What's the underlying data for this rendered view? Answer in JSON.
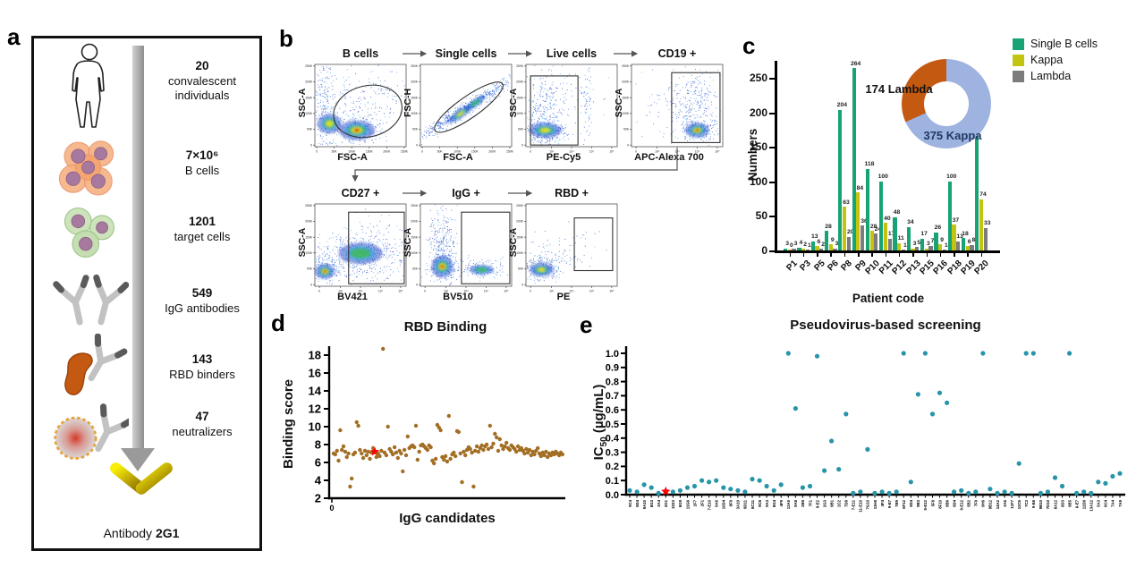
{
  "panel_letters": {
    "a": "a",
    "b": "b",
    "c": "c",
    "d": "d",
    "e": "e"
  },
  "panel_a": {
    "steps": [
      {
        "icon": "human-icon",
        "value": "20",
        "label": "convalescent individuals"
      },
      {
        "icon": "b-cells-icon",
        "value": "7×10⁶",
        "label": "B cells"
      },
      {
        "icon": "target-cells-icon",
        "value": "1201",
        "label": "target cells"
      },
      {
        "icon": "igg-antibodies-icon",
        "value": "549",
        "label": "IgG antibodies"
      },
      {
        "icon": "rbd-binder-icon",
        "value": "143",
        "label": "RBD binders"
      },
      {
        "icon": "neutralizer-icon",
        "value": "47",
        "label": "neutralizers"
      }
    ],
    "footer_prefix": "Antibody",
    "footer_name": "2G1"
  },
  "panel_b": {
    "plots": [
      {
        "title": "B cells",
        "xlabel": "FSC-A",
        "ylabel": "SSC-A",
        "xscale": "linear"
      },
      {
        "title": "Single cells",
        "xlabel": "FSC-A",
        "ylabel": "FSC-H",
        "xscale": "linear"
      },
      {
        "title": "Live cells",
        "xlabel": "PE-Cy5",
        "ylabel": "SSC-A",
        "xscale": "log"
      },
      {
        "title": "CD19 +",
        "xlabel": "APC-Alexa 700",
        "ylabel": "SSC-A",
        "xscale": "log"
      },
      {
        "title": "CD27 +",
        "xlabel": "BV421",
        "ylabel": "SSC-A",
        "xscale": "log"
      },
      {
        "title": "IgG +",
        "xlabel": "BV510",
        "ylabel": "SSC-A",
        "xscale": "log"
      },
      {
        "title": "RBD +",
        "xlabel": "PE",
        "ylabel": "SSC-A",
        "xscale": "log"
      }
    ],
    "linear_ticks": [
      "0",
      "50K",
      "100K",
      "150K",
      "200K",
      "250K"
    ],
    "log_ticks": [
      "0",
      "10²",
      "10³",
      "10⁴",
      "10⁵"
    ]
  },
  "chart_data": [
    {
      "id": "panel_c",
      "type": "bar",
      "title": "",
      "xlabel": "Patient code",
      "ylabel": "Numbers",
      "categories": [
        "P1",
        "P3",
        "P5",
        "P6",
        "P8",
        "P9",
        "P10",
        "P11",
        "P12",
        "P13",
        "P15",
        "P16",
        "P18",
        "P19",
        "P20"
      ],
      "series": [
        {
          "name": "Single B cells",
          "color": "#17A374",
          "values": [
            3,
            4,
            13,
            28,
            204,
            264,
            118,
            100,
            48,
            34,
            17,
            26,
            100,
            18,
            223
          ]
        },
        {
          "name": "Kappa",
          "color": "#C3C411",
          "values": [
            0,
            2,
            6,
            9,
            63,
            84,
            28,
            40,
            11,
            3,
            3,
            9,
            37,
            6,
            74
          ]
        },
        {
          "name": "Lambda",
          "color": "#7C7C7C",
          "values": [
            3,
            1,
            2,
            3,
            20,
            36,
            24,
            17,
            1,
            5,
            7,
            1,
            13,
            8,
            33
          ]
        }
      ],
      "ylim": [
        0,
        280
      ],
      "yticks": [
        0,
        50,
        100,
        150,
        200,
        250
      ],
      "grid": false,
      "legend_position": "top-right",
      "donut": {
        "segments": [
          {
            "label": "375 Kappa",
            "value": 375,
            "color": "#9FB3E1",
            "label_color": "#1F3864"
          },
          {
            "label": "174 Lambda",
            "value": 174,
            "color": "#C45911",
            "label_color": "#111111"
          }
        ]
      }
    },
    {
      "id": "panel_d",
      "type": "scatter",
      "title": "RBD Binding",
      "xlabel": "IgG candidates",
      "ylabel": "Binding score",
      "x_origin_label": "0",
      "ylim": [
        2,
        19
      ],
      "yticks": [
        2,
        4,
        6,
        8,
        10,
        12,
        14,
        16,
        18
      ],
      "point_color": "#A26E24",
      "grid": false,
      "highlight": {
        "index": 25,
        "value": 7.2,
        "marker": "red-star",
        "color": "#FF0000",
        "name": "2G1"
      },
      "x_implied": true,
      "values": [
        7.0,
        6.9,
        7.3,
        6.2,
        9.6,
        7.4,
        7.8,
        7.2,
        6.6,
        7.0,
        3.3,
        4.2,
        6.9,
        7.1,
        10.5,
        10.1,
        7.4,
        7.0,
        6.5,
        7.3,
        6.8,
        7.2,
        6.4,
        7.1,
        7.6,
        7.2,
        6.6,
        7.0,
        6.7,
        7.3,
        18.7,
        7.1,
        6.8,
        10.0,
        7.5,
        7.2,
        6.9,
        7.7,
        7.1,
        6.5,
        7.3,
        7.0,
        5.0,
        7.4,
        6.8,
        8.9,
        7.6,
        7.8,
        7.9,
        7.7,
        10.1,
        6.3,
        7.2,
        7.9,
        8.0,
        7.8,
        7.6,
        7.4,
        7.9,
        7.7,
        6.2,
        5.9,
        6.4,
        10.2,
        9.9,
        9.6,
        6.6,
        6.3,
        6.7,
        6.1,
        11.2,
        6.4,
        6.9,
        7.1,
        6.7,
        9.5,
        9.4,
        7.0,
        3.8,
        7.2,
        6.8,
        7.4,
        7.7,
        7.5,
        7.1,
        3.3,
        7.3,
        7.8,
        7.2,
        7.6,
        7.9,
        7.4,
        7.8,
        8.0,
        7.5,
        10.1,
        7.7,
        8.1,
        9.2,
        8.8,
        7.3,
        8.6,
        7.9,
        7.5,
        7.8,
        8.2,
        7.6,
        7.4,
        7.9,
        7.7,
        7.5,
        7.2,
        7.8,
        7.4,
        7.6,
        7.3,
        7.0,
        7.5,
        7.1,
        7.4,
        6.8,
        7.2,
        6.9,
        7.3,
        7.6,
        7.0,
        6.7,
        7.1,
        6.8,
        7.2,
        6.6,
        7.0,
        6.8,
        7.1,
        6.9,
        7.2,
        7.0,
        6.8,
        7.1,
        6.9
      ]
    },
    {
      "id": "panel_e",
      "type": "scatter",
      "title": "Pseudovirus-based screening",
      "ylabel_prefix": "IC",
      "ylabel_sub": "50",
      "ylabel_suffix": " (µg/mL)",
      "ylim": [
        0,
        1.0
      ],
      "yticks": [
        0.0,
        0.1,
        0.2,
        0.3,
        0.4,
        0.5,
        0.6,
        0.7,
        0.8,
        0.9,
        1.0
      ],
      "point_color": "#2795A9",
      "grid": false,
      "highlight": {
        "index": 5,
        "category": "2G1",
        "value": 0.01,
        "marker": "red-star",
        "color": "#FF0000"
      },
      "categories": [
        "9C4",
        "8D4",
        "9A10",
        "8G3",
        "3A4",
        "2G1",
        "11D3",
        "8G9",
        "11G6",
        "2F7",
        "2F1",
        "7-E10",
        "9A6",
        "10D4",
        "8F9",
        "3A10",
        "9D11",
        "8C11",
        "9C8",
        "9A3",
        "8G4",
        "4F9",
        "13A5",
        "9A8",
        "2B8",
        "7F1",
        "9-E2",
        "2G3",
        "9B1",
        "2C2",
        "7D8",
        "7-E11",
        "11-E10",
        "7G10",
        "13H8",
        "4F4",
        "9-E7",
        "7B9",
        "6F12",
        "5D4",
        "9B3",
        "8-E12",
        "5F8",
        "8F10",
        "9B6",
        "9D4",
        "9-E12",
        "5B2",
        "7F9",
        "9H6",
        "9B12",
        "14A2",
        "3A6",
        "11F7",
        "12C6",
        "7C3",
        "9-E8",
        "9B10",
        "7D10",
        "8A12",
        "8D3",
        "9B5",
        "8-E7",
        "12D8",
        "13A12",
        "5A3",
        "6C4",
        "7A4",
        "7A9"
      ],
      "values": [
        0.03,
        0.02,
        0.07,
        0.05,
        0.01,
        0.01,
        0.02,
        0.03,
        0.05,
        0.06,
        0.1,
        0.09,
        0.1,
        0.05,
        0.04,
        0.03,
        0.02,
        0.11,
        0.1,
        0.06,
        0.03,
        0.07,
        1.0,
        0.61,
        0.05,
        0.06,
        0.98,
        0.17,
        0.38,
        0.18,
        0.57,
        0.01,
        0.02,
        0.32,
        0.01,
        0.02,
        0.01,
        0.02,
        1.0,
        0.09,
        0.71,
        1.0,
        0.57,
        0.72,
        0.65,
        0.02,
        0.03,
        0.01,
        0.02,
        1.0,
        0.04,
        0.01,
        0.02,
        0.01,
        0.22,
        1.0,
        1.0,
        0.01,
        0.02,
        0.12,
        0.06,
        1.0,
        0.01,
        0.02,
        0.01,
        0.09,
        0.08,
        0.13,
        0.15
      ]
    }
  ]
}
